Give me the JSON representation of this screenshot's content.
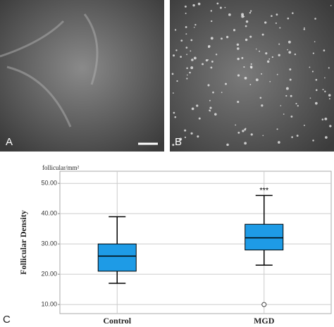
{
  "panels": [
    {
      "label": "A"
    },
    {
      "label": "B"
    }
  ],
  "chart_data": {
    "type": "box",
    "panel_label": "C",
    "y_label": "Follicular Density",
    "unit_label": "follicular/mm²",
    "categories": [
      "Control",
      "MGD"
    ],
    "color": "#1e9be6",
    "boxes": [
      {
        "whislo": 17,
        "q1": 21,
        "med": 26,
        "q3": 30,
        "whishi": 39,
        "fliers": []
      },
      {
        "whislo": 23,
        "q1": 28,
        "med": 32,
        "q3": 36.5,
        "whishi": 46,
        "fliers": [
          10
        ],
        "label": "***"
      }
    ],
    "ylim": [
      7,
      54
    ],
    "yticks": [
      {
        "value": 10,
        "label": "10.00"
      },
      {
        "value": 20,
        "label": "20.00"
      },
      {
        "value": 30,
        "label": "30.00"
      },
      {
        "value": 40,
        "label": "40.00"
      },
      {
        "value": 50,
        "label": "50.00"
      }
    ],
    "grid": true
  }
}
